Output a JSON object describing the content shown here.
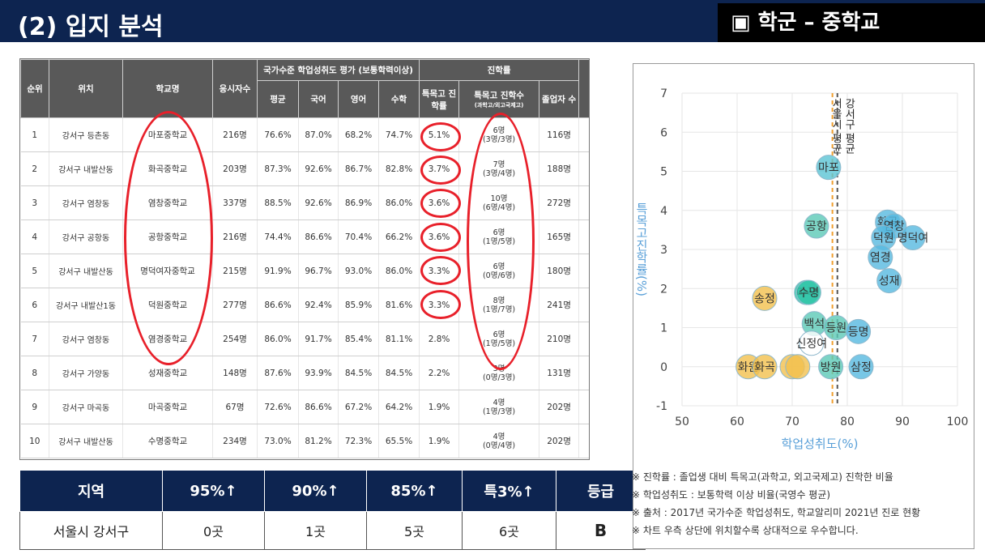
{
  "header": {
    "title": "(2) 입지 분석",
    "section": "▣ 학군 – 중학교"
  },
  "table": {
    "h_rank": "순위",
    "h_loc": "위치",
    "h_school": "학교명",
    "h_takers": "응시자수",
    "h_group_eval": "국가수준 학업성취도 평가 (보통학력이상)",
    "h_group_adv": "진학률",
    "h_avg": "평균",
    "h_kor": "국어",
    "h_eng": "영어",
    "h_math": "수학",
    "h_rate": "특목고 진학률",
    "h_count": "특목고 진학수",
    "h_count_sub": "(과학고/외고국제고)",
    "h_grad": "졸업자 수",
    "rows": [
      {
        "rank": "1",
        "loc": "강서구 등촌동",
        "school": "마포중학교",
        "takers": "216명",
        "avg": "76.6%",
        "kor": "87.0%",
        "eng": "68.2%",
        "math": "74.7%",
        "rate": "5.1%",
        "cnt": "6명",
        "cnt_sub": "(3명/3명)",
        "grad": "116명"
      },
      {
        "rank": "2",
        "loc": "강서구 내발산동",
        "school": "화곡중학교",
        "takers": "203명",
        "avg": "87.3%",
        "kor": "92.6%",
        "eng": "86.7%",
        "math": "82.8%",
        "rate": "3.7%",
        "cnt": "7명",
        "cnt_sub": "(3명/4명)",
        "grad": "188명"
      },
      {
        "rank": "3",
        "loc": "강서구 염창동",
        "school": "염창중학교",
        "takers": "337명",
        "avg": "88.5%",
        "kor": "92.6%",
        "eng": "86.9%",
        "math": "86.0%",
        "rate": "3.6%",
        "cnt": "10명",
        "cnt_sub": "(6명/4명)",
        "grad": "272명"
      },
      {
        "rank": "4",
        "loc": "강서구 공항동",
        "school": "공항중학교",
        "takers": "216명",
        "avg": "74.4%",
        "kor": "86.6%",
        "eng": "70.4%",
        "math": "66.2%",
        "rate": "3.6%",
        "cnt": "6명",
        "cnt_sub": "(1명/5명)",
        "grad": "165명"
      },
      {
        "rank": "5",
        "loc": "강서구 내발산동",
        "school": "명덕여자중학교",
        "takers": "215명",
        "avg": "91.9%",
        "kor": "96.7%",
        "eng": "93.0%",
        "math": "86.0%",
        "rate": "3.3%",
        "cnt": "6명",
        "cnt_sub": "(0명/6명)",
        "grad": "180명"
      },
      {
        "rank": "6",
        "loc": "강서구 내발산1동",
        "school": "덕원중학교",
        "takers": "277명",
        "avg": "86.6%",
        "kor": "92.4%",
        "eng": "85.9%",
        "math": "81.6%",
        "rate": "3.3%",
        "cnt": "8명",
        "cnt_sub": "(1명/7명)",
        "grad": "241명"
      },
      {
        "rank": "7",
        "loc": "강서구 염창동",
        "school": "염경중학교",
        "takers": "254명",
        "avg": "86.0%",
        "kor": "91.7%",
        "eng": "85.4%",
        "math": "81.1%",
        "rate": "2.8%",
        "cnt": "6명",
        "cnt_sub": "(1명/5명)",
        "grad": "210명"
      },
      {
        "rank": "8",
        "loc": "강서구 가양동",
        "school": "성재중학교",
        "takers": "148명",
        "avg": "87.6%",
        "kor": "93.9%",
        "eng": "84.5%",
        "math": "84.5%",
        "rate": "2.2%",
        "cnt": "3명",
        "cnt_sub": "(0명/3명)",
        "grad": "131명"
      },
      {
        "rank": "9",
        "loc": "강서구 마곡동",
        "school": "마곡중학교",
        "takers": "67명",
        "avg": "72.6%",
        "kor": "86.6%",
        "eng": "67.2%",
        "math": "64.2%",
        "rate": "1.9%",
        "cnt": "4명",
        "cnt_sub": "(1명/3명)",
        "grad": "202명"
      },
      {
        "rank": "10",
        "loc": "강서구 내발산동",
        "school": "수명중학교",
        "takers": "234명",
        "avg": "73.0%",
        "kor": "81.2%",
        "eng": "72.3%",
        "math": "65.5%",
        "rate": "1.9%",
        "cnt": "4명",
        "cnt_sub": "(0명/4명)",
        "grad": "202명"
      }
    ]
  },
  "grade_table": {
    "headers": [
      "지역",
      "95%↑",
      "90%↑",
      "85%↑",
      "특3%↑",
      "등급"
    ],
    "values": [
      "서울시 강서구",
      "0곳",
      "1곳",
      "5곳",
      "6곳",
      "B"
    ]
  },
  "chart_data": {
    "type": "scatter",
    "xlabel": "학업성취도(%)",
    "ylabel": "특목고진학률(%)",
    "xlim": [
      50,
      100
    ],
    "ylim": [
      -1,
      7
    ],
    "xticks": [
      50,
      60,
      70,
      80,
      90,
      100
    ],
    "yticks": [
      -1,
      0,
      1,
      2,
      3,
      4,
      5,
      6,
      7
    ],
    "ref_lines": [
      {
        "x": 77.3,
        "label": "서울시 평균",
        "color": "#f0a030"
      },
      {
        "x": 78.2,
        "label": "강서구 평균",
        "color": "#555555"
      }
    ],
    "points": [
      {
        "label": "마포",
        "x": 76.6,
        "y": 5.1,
        "color": "#5bc4d4"
      },
      {
        "label": "화곡",
        "x": 87.3,
        "y": 3.7,
        "color": "#56b9e0"
      },
      {
        "label": "염창",
        "x": 88.5,
        "y": 3.6,
        "color": "#56b9e0"
      },
      {
        "label": "공항",
        "x": 74.4,
        "y": 3.6,
        "color": "#5bc9b6"
      },
      {
        "label": "명덕여",
        "x": 91.9,
        "y": 3.3,
        "color": "#56b9e0"
      },
      {
        "label": "덕원",
        "x": 86.6,
        "y": 3.3,
        "color": "#56b9e0"
      },
      {
        "label": "염경",
        "x": 86.0,
        "y": 2.8,
        "color": "#56b9e0"
      },
      {
        "label": "성재",
        "x": 87.6,
        "y": 2.2,
        "color": "#56b9e0"
      },
      {
        "label": "마곡",
        "x": 72.6,
        "y": 1.9,
        "color": "#2ec4a8"
      },
      {
        "label": "수명",
        "x": 73.0,
        "y": 1.9,
        "color": "#2ec4a8"
      },
      {
        "label": "송정",
        "x": 65.0,
        "y": 1.75,
        "color": "#f2c14e"
      },
      {
        "label": "백석",
        "x": 74.0,
        "y": 1.1,
        "color": "#5bc9b6"
      },
      {
        "label": "등원",
        "x": 78.0,
        "y": 1.0,
        "color": "#5bc9b6"
      },
      {
        "label": "등명",
        "x": 82.0,
        "y": 0.9,
        "color": "#56b9e0"
      },
      {
        "label": "신정여",
        "x": 73.5,
        "y": 0.6,
        "color": "#ffffff"
      },
      {
        "label": "화원",
        "x": 62.0,
        "y": 0.0,
        "color": "#f2c14e"
      },
      {
        "label": "화곡",
        "x": 65.0,
        "y": 0.0,
        "color": "#f2c14e"
      },
      {
        "label": "",
        "x": 70.0,
        "y": 0.0,
        "color": "#f2c14e"
      },
      {
        "label": "",
        "x": 71.0,
        "y": 0.0,
        "color": "#f2c14e"
      },
      {
        "label": "방원",
        "x": 77.0,
        "y": 0.0,
        "color": "#5bc9b6"
      },
      {
        "label": "삼정",
        "x": 82.5,
        "y": 0.0,
        "color": "#56b9e0"
      }
    ]
  },
  "notes": [
    "※ 진학률 : 졸업생 대비 특목고(과학고, 외고국제고) 진학한 비율",
    "※ 학업성취도 : 보통학력 이상 비율(국영수 평균)",
    "※ 출처 : 2017년 국가수준 학업성취도, 학교알리미 2021년 진로 현황",
    "※ 차트 우측 상단에 위치할수록 상대적으로 우수합니다."
  ]
}
